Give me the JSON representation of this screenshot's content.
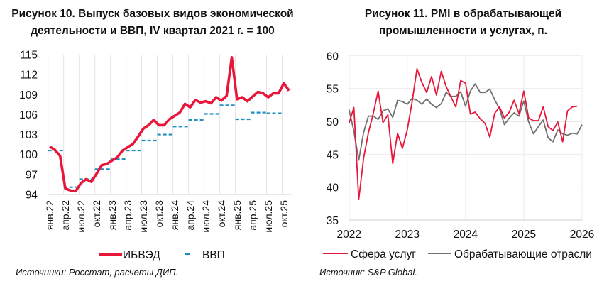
{
  "chart_data": [
    {
      "type": "line",
      "title": "Рисунок 10. Выпуск базовых видов экономической деятельности и ВВП, IV квартал 2021 г. = 100",
      "title_lines": [
        "Рисунок 10. Выпуск базовых видов экономической",
        "деятельности и ВВП, IV квартал 2021 г. = 100"
      ],
      "xlabel": "",
      "ylabel": "",
      "ylim": [
        94,
        115
      ],
      "yticks": [
        94,
        97,
        100,
        103,
        106,
        109,
        112,
        115
      ],
      "xtick_labels": [
        "янв.22",
        "апр.22",
        "июл.22",
        "окт.22",
        "янв.23",
        "апр.23",
        "июл.23",
        "окт.23",
        "янв.24",
        "апр.24",
        "июл.24",
        "окт.24",
        "янв.25",
        "апр.25",
        "июл.25",
        "окт.25"
      ],
      "x_start": "2022-01",
      "x_frequency": "monthly",
      "grid": "vertical",
      "legend_position": "bottom",
      "series": [
        {
          "name": "ИБВЭД",
          "style": "solid-thick",
          "color": "#e8173a",
          "frequency": "monthly",
          "values": [
            101.2,
            100.7,
            99.8,
            94.9,
            94.6,
            94.5,
            95.7,
            96.3,
            95.9,
            97.1,
            98.4,
            98.6,
            99.1,
            99.6,
            100.6,
            101.1,
            101.6,
            102.7,
            103.9,
            104.4,
            105.2,
            104.4,
            104.4,
            105.3,
            105.8,
            106.3,
            107.6,
            107.1,
            108.2,
            107.8,
            108.0,
            107.7,
            108.6,
            108.1,
            108.8,
            114.6,
            108.3,
            108.6,
            108.0,
            108.7,
            109.4,
            109.2,
            108.6,
            109.2,
            109.2,
            110.7,
            109.6
          ]
        },
        {
          "name": "ВВП",
          "style": "dashed",
          "color": "#1f8fc0",
          "frequency": "quarterly",
          "values": [
            100.6,
            95.1,
            96.3,
            97.8,
            99.3,
            100.6,
            102.1,
            103.0,
            104.2,
            105.2,
            106.1,
            107.4,
            105.3,
            106.3,
            106.2
          ]
        }
      ],
      "source": "Источники: Росстат, расчеты ДИП."
    },
    {
      "type": "line",
      "title": "Рисунок 11. PMI в обрабатывающей промышленности и услугах, п.",
      "title_lines": [
        "Рисунок 11. PMI в обрабатывающей",
        "промышленности и услугах, п."
      ],
      "xlabel": "",
      "ylabel": "",
      "ylim": [
        35,
        60
      ],
      "yticks": [
        35,
        40,
        45,
        50,
        55,
        60
      ],
      "xlim": [
        2022,
        2026
      ],
      "xtick_labels": [
        "2022",
        "2023",
        "2024",
        "2025",
        "2026"
      ],
      "x_start": "2022-01",
      "x_frequency": "monthly",
      "grid": "both",
      "legend_position": "bottom",
      "series": [
        {
          "name": "Сфера услуг",
          "color": "#e8173a",
          "values": [
            49.7,
            52.1,
            38.1,
            44.4,
            48.3,
            51.2,
            54.6,
            49.8,
            51.0,
            43.6,
            48.2,
            45.9,
            48.7,
            53.0,
            58.0,
            55.9,
            54.4,
            56.8,
            54.0,
            57.6,
            55.3,
            53.7,
            52.2,
            56.2,
            55.8,
            51.1,
            51.4,
            50.4,
            49.7,
            47.6,
            51.2,
            52.2,
            50.5,
            51.4,
            53.2,
            51.2,
            54.6,
            50.5,
            50.1,
            50.1,
            52.2,
            49.2,
            48.6,
            49.9,
            46.9,
            51.6,
            52.2,
            52.3
          ]
        },
        {
          "name": "Обрабатывающие отрасли",
          "color": "#707070",
          "values": [
            51.8,
            48.5,
            44.1,
            48.3,
            50.8,
            50.8,
            50.3,
            51.6,
            51.9,
            50.6,
            53.2,
            53.0,
            52.6,
            53.5,
            53.2,
            52.6,
            53.4,
            52.6,
            52.1,
            52.7,
            54.4,
            53.8,
            53.8,
            54.5,
            52.3,
            54.6,
            55.7,
            54.4,
            54.4,
            54.9,
            53.3,
            51.9,
            49.5,
            50.5,
            51.3,
            50.8,
            53.1,
            49.9,
            48.1,
            49.2,
            50.2,
            47.5,
            46.9,
            48.7,
            48.1,
            47.9,
            48.2,
            48.1,
            49.5
          ]
        }
      ],
      "source": "Источник: S&P Global."
    }
  ]
}
